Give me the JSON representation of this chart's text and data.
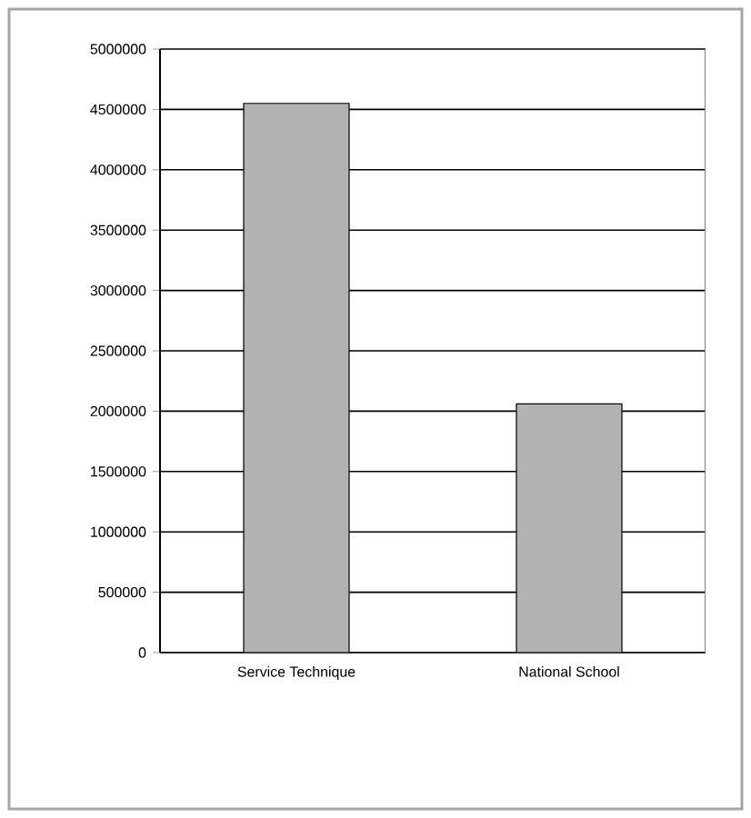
{
  "chart_data": {
    "type": "bar",
    "categories": [
      "Service Technique",
      "National School"
    ],
    "values": [
      4550000,
      2060000
    ],
    "color": "#b2b2b2",
    "ylim": [
      0,
      5000000
    ],
    "yticks": [
      0,
      500000,
      1000000,
      1500000,
      2000000,
      2500000,
      3000000,
      3500000,
      4000000,
      4500000,
      5000000
    ],
    "grid": "y"
  }
}
